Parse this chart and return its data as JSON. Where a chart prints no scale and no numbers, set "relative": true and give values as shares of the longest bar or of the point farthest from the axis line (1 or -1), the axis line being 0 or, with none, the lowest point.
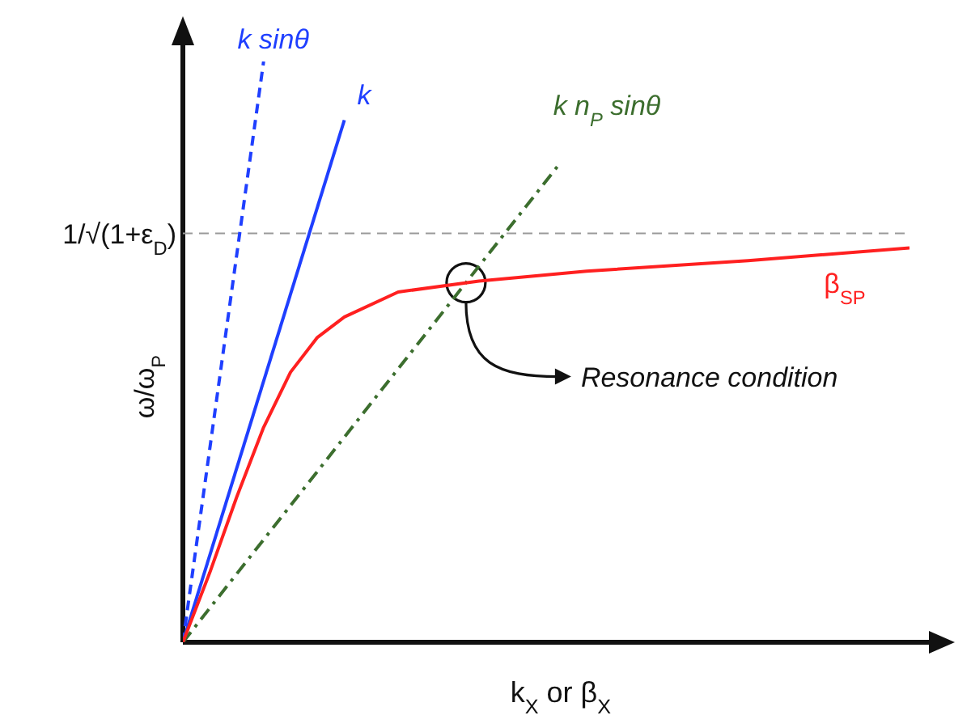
{
  "chart_data": {
    "type": "line",
    "relative": true,
    "xlabel": "k$_{X}$ or β$_{X}$",
    "ylabel": "ω/ω$_{P}$",
    "marker": "none",
    "categories": [
      null,
      null,
      null,
      null,
      null,
      null,
      null,
      null,
      null,
      null,
      null,
      null,
      null,
      null,
      null,
      null,
      null,
      null,
      null,
      null,
      null,
      null,
      null,
      null,
      null,
      null,
      null,
      null
    ],
    "series": [
      {
        "name": "k sinθ",
        "color": "#1f3fff",
        "line_style": "dashed",
        "values": [
          0,
          null,
          null,
          1,
          null,
          null,
          null,
          null,
          null,
          null,
          null,
          null,
          null,
          null,
          null,
          null,
          null,
          null,
          null,
          null,
          null,
          null,
          null,
          null,
          null,
          null,
          null,
          null
        ]
      },
      {
        "name": "k",
        "color": "#1f3fff",
        "line_style": "solid",
        "values": [
          0,
          null,
          null,
          null,
          null,
          null,
          0.899,
          null,
          null,
          null,
          null,
          null,
          null,
          null,
          null,
          null,
          null,
          null,
          null,
          null,
          null,
          null,
          null,
          null,
          null,
          null,
          null,
          null
        ]
      },
      {
        "name": "k n$_{P}$ sinθ",
        "color": "#3c6e2e",
        "line_style": "dashdot",
        "values": [
          0,
          null,
          null,
          null,
          null,
          null,
          null,
          null,
          null,
          null,
          null,
          null,
          null,
          null,
          0.824,
          null,
          null,
          null,
          null,
          null,
          null,
          null,
          null,
          null,
          null,
          null,
          null,
          null
        ]
      },
      {
        "name": "β$_{SP}$",
        "color": "#ff2020",
        "line_style": "solid",
        "values": [
          0,
          0.12,
          0.25,
          0.37,
          0.465,
          0.525,
          0.56,
          null,
          0.603,
          null,
          null,
          0.622,
          null,
          null,
          null,
          0.639,
          null,
          null,
          null,
          null,
          null,
          0.657,
          null,
          null,
          null,
          null,
          null,
          0.679
        ]
      }
    ],
    "ref_lines": [
      {
        "axis": "y",
        "value": 0.704,
        "label": "1/√(1+ε$_{D}$)",
        "color": "#999999",
        "line_style": "dashed"
      }
    ],
    "annotations": [
      "Resonance condition"
    ]
  }
}
